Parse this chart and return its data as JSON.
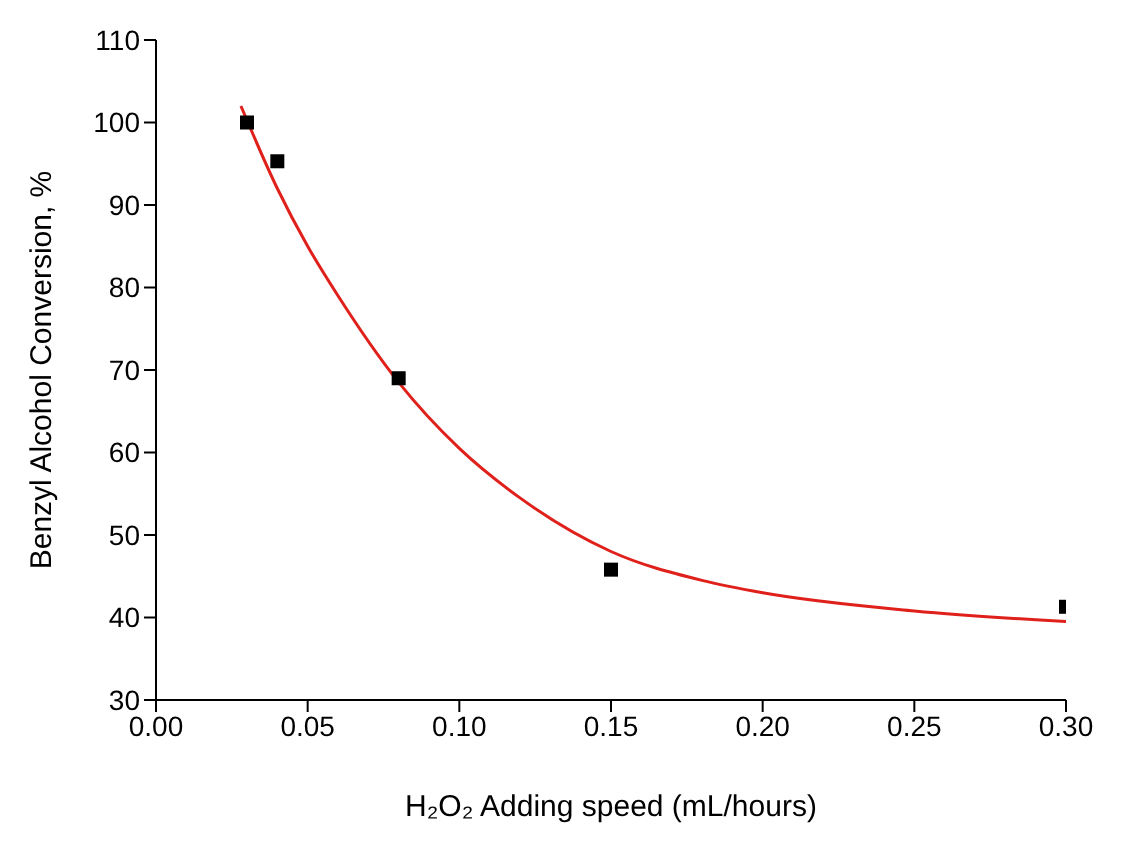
{
  "chart_data": {
    "type": "scatter",
    "xlabel": "H₂O₂ Adding speed (mL/hours)",
    "ylabel": "Benzyl Alcohol Conversion, %",
    "xlim": [
      0,
      0.3
    ],
    "ylim": [
      30,
      110
    ],
    "xticks": [
      {
        "value": 0,
        "label": "0.00"
      },
      {
        "value": 0.05,
        "label": "0.05"
      },
      {
        "value": 0.1,
        "label": "0.10"
      },
      {
        "value": 0.15,
        "label": "0.15"
      },
      {
        "value": 0.2,
        "label": "0.20"
      },
      {
        "value": 0.25,
        "label": "0.25"
      },
      {
        "value": 0.3,
        "label": "0.30"
      }
    ],
    "yticks": [
      30,
      40,
      50,
      60,
      70,
      80,
      90,
      100,
      110
    ],
    "grid": false,
    "legend": false,
    "marker": "square",
    "series": [
      {
        "color": "#000000",
        "x": [
          0.03,
          0.04,
          0.08,
          0.15,
          0.3
        ],
        "values": [
          100,
          95.3,
          69,
          45.8,
          41.3
        ]
      },
      {
        "type": "line",
        "color": "#e0201b",
        "marker": "none",
        "x": [
          0.028,
          0.04,
          0.05,
          0.06,
          0.08,
          0.1,
          0.12,
          0.15,
          0.18,
          0.2,
          0.25,
          0.3
        ],
        "values": [
          102,
          92,
          85,
          79,
          68.5,
          60.5,
          54.5,
          48,
          44.5,
          43,
          40.8,
          39.5
        ]
      }
    ]
  }
}
